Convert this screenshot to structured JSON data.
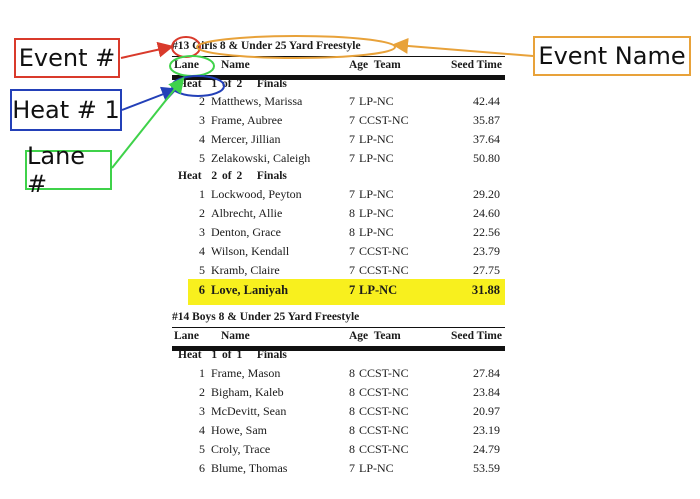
{
  "annotations": {
    "event_number": {
      "label": "Event #",
      "color": "#d93a2b"
    },
    "event_name": {
      "label": "Event Name",
      "color": "#e8a23a"
    },
    "heat_number": {
      "label": "Heat # 1",
      "color": "#2340b8"
    },
    "lane_number": {
      "label": "Lane #",
      "color": "#3fd24a"
    }
  },
  "highlight_color": "#f8f01e",
  "events": [
    {
      "title": "#13 Girls 8 & Under 25 Yard Freestyle",
      "columns": {
        "lane": "Lane",
        "name": "Name",
        "age_team": "Age  Team",
        "seed": "Seed Time"
      },
      "heats": [
        {
          "label": "Heat  1 of 2   Finals",
          "rows": [
            {
              "lane": "2",
              "name": "Matthews, Marissa",
              "age": "7",
              "team": "LP-NC",
              "seed": "42.44"
            },
            {
              "lane": "3",
              "name": "Frame, Aubree",
              "age": "7",
              "team": "CCST-NC",
              "seed": "35.87"
            },
            {
              "lane": "4",
              "name": "Mercer, Jillian",
              "age": "7",
              "team": "LP-NC",
              "seed": "37.64"
            },
            {
              "lane": "5",
              "name": "Zelakowski, Caleigh",
              "age": "7",
              "team": "LP-NC",
              "seed": "50.80"
            }
          ]
        },
        {
          "label": "Heat  2 of 2   Finals",
          "rows": [
            {
              "lane": "1",
              "name": "Lockwood, Peyton",
              "age": "7",
              "team": "LP-NC",
              "seed": "29.20"
            },
            {
              "lane": "2",
              "name": "Albrecht, Allie",
              "age": "8",
              "team": "LP-NC",
              "seed": "24.60"
            },
            {
              "lane": "3",
              "name": "Denton, Grace",
              "age": "8",
              "team": "LP-NC",
              "seed": "22.56"
            },
            {
              "lane": "4",
              "name": "Wilson, Kendall",
              "age": "7",
              "team": "CCST-NC",
              "seed": "23.79"
            },
            {
              "lane": "5",
              "name": "Kramb, Claire",
              "age": "7",
              "team": "CCST-NC",
              "seed": "27.75"
            },
            {
              "lane": "6",
              "name": "Love, Laniyah",
              "age": "7",
              "team": "LP-NC",
              "seed": "31.88",
              "highlighted": true
            }
          ]
        }
      ]
    },
    {
      "title": "#14 Boys 8 & Under 25 Yard Freestyle",
      "columns": {
        "lane": "Lane",
        "name": "Name",
        "age_team": "Age  Team",
        "seed": "Seed Time"
      },
      "heats": [
        {
          "label": "Heat  1 of 1   Finals",
          "rows": [
            {
              "lane": "1",
              "name": "Frame, Mason",
              "age": "8",
              "team": "CCST-NC",
              "seed": "27.84"
            },
            {
              "lane": "2",
              "name": "Bigham, Kaleb",
              "age": "8",
              "team": "CCST-NC",
              "seed": "23.84"
            },
            {
              "lane": "3",
              "name": "McDevitt, Sean",
              "age": "8",
              "team": "CCST-NC",
              "seed": "20.97"
            },
            {
              "lane": "4",
              "name": "Howe, Sam",
              "age": "8",
              "team": "CCST-NC",
              "seed": "23.19"
            },
            {
              "lane": "5",
              "name": "Croly, Trace",
              "age": "8",
              "team": "CCST-NC",
              "seed": "24.79"
            },
            {
              "lane": "6",
              "name": "Blume, Thomas",
              "age": "7",
              "team": "LP-NC",
              "seed": "53.59"
            }
          ]
        }
      ]
    }
  ]
}
